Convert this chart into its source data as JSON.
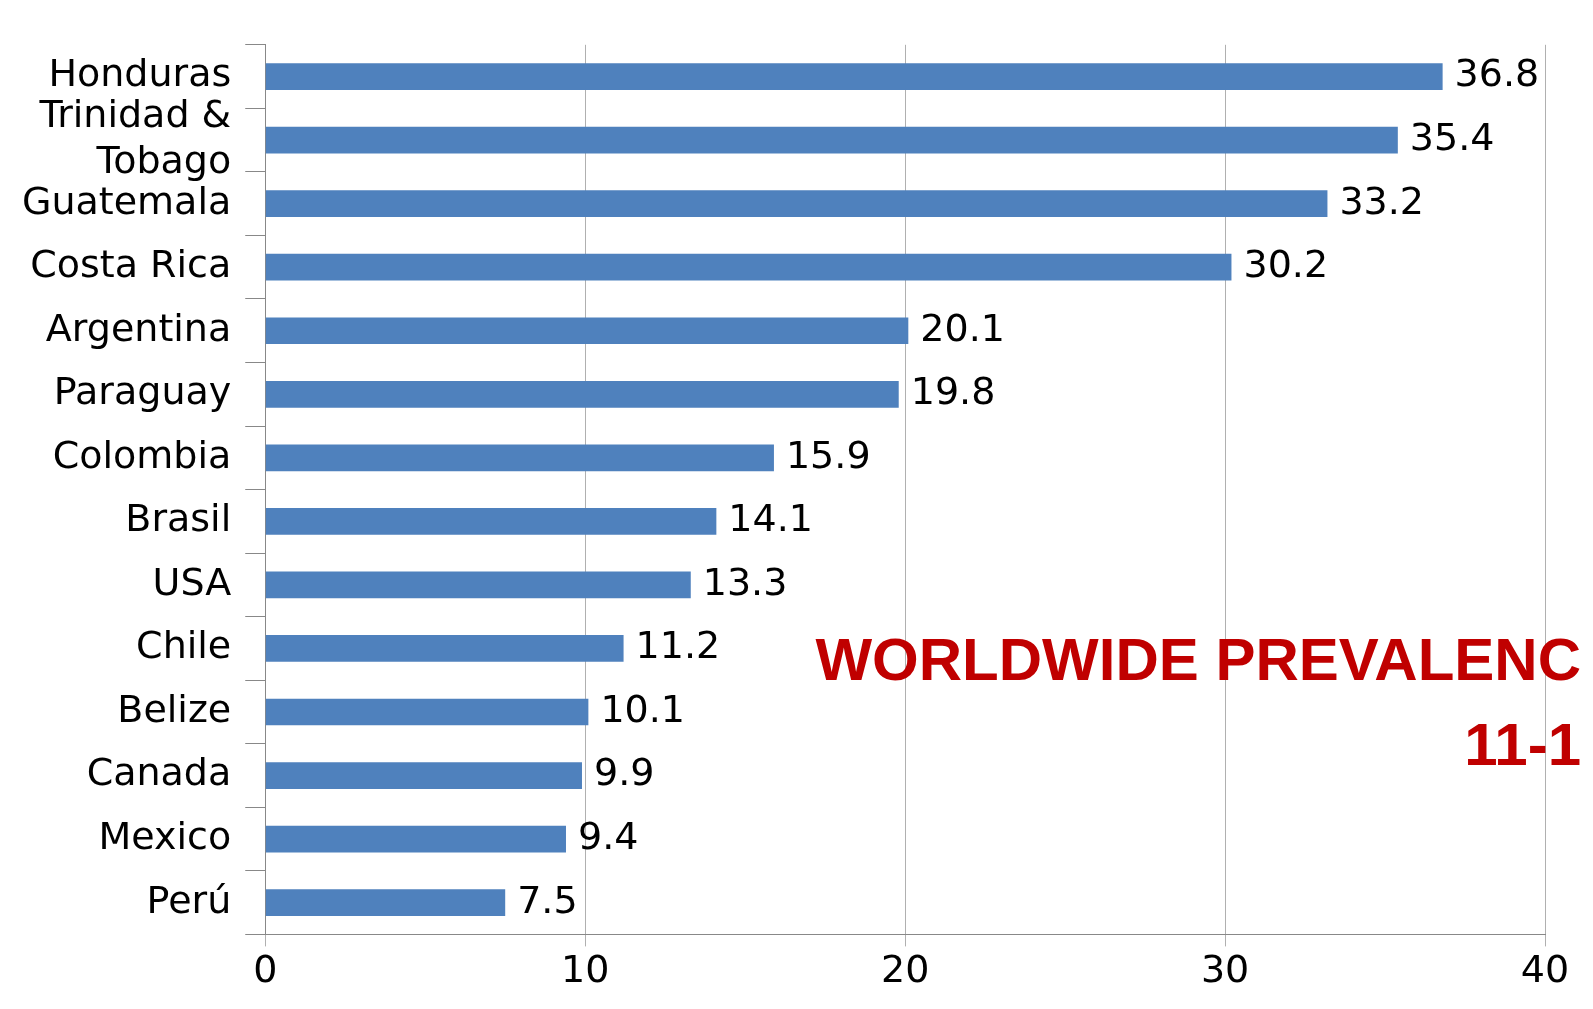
{
  "chart_data": {
    "type": "bar",
    "orientation": "horizontal",
    "categories": [
      "Honduras",
      "Trinidad & Tobago",
      "Guatemala",
      "Costa Rica",
      "Argentina",
      "Paraguay",
      "Colombia",
      "Brasil",
      "USA",
      "Chile",
      "Belize",
      "Canada",
      "Mexico",
      "Perú"
    ],
    "values": [
      36.8,
      35.4,
      33.2,
      30.2,
      20.1,
      19.8,
      15.9,
      14.1,
      13.3,
      11.2,
      10.1,
      9.9,
      9.4,
      7.5
    ],
    "color": "#4f81bd",
    "xlim": [
      0,
      40
    ],
    "xticks": [
      0,
      10,
      20,
      30,
      40
    ],
    "grid": "x",
    "data_labels": true,
    "legend": false,
    "annotations": [
      "WORLDWIDE PREVALENC",
      "11-1"
    ]
  }
}
